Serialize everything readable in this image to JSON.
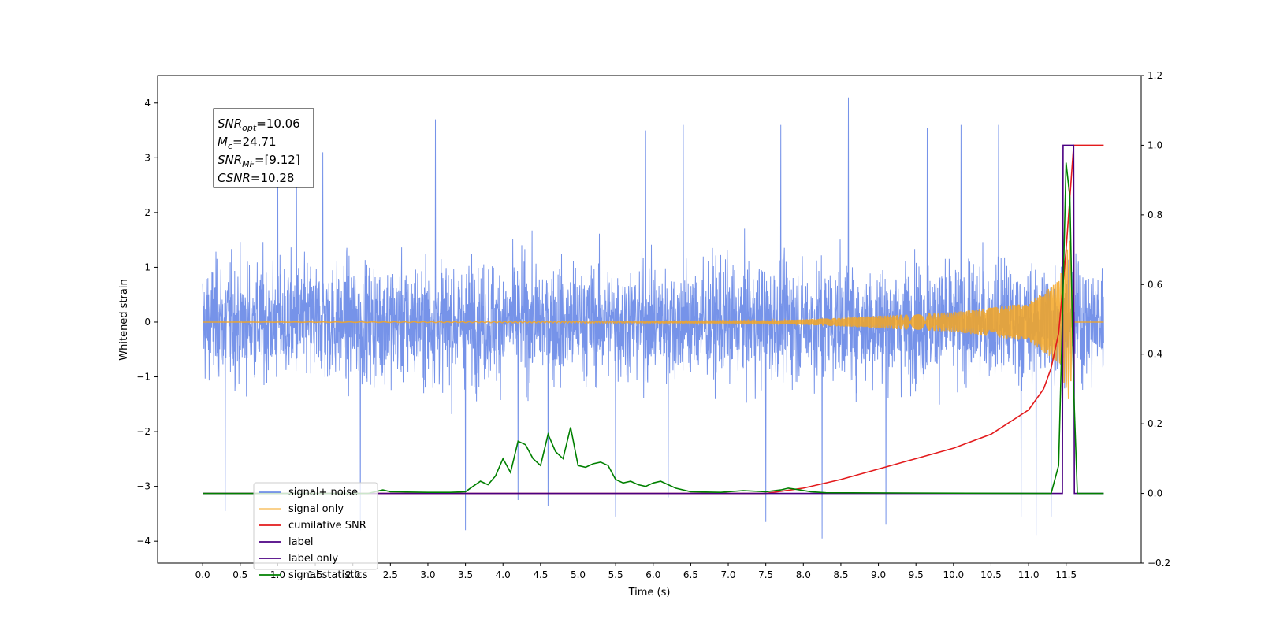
{
  "chart_data": {
    "type": "line",
    "title": "",
    "xlabel": "Time (s)",
    "ylabel": "Whitened strain",
    "xlim": [
      -0.6,
      12.5
    ],
    "ylim": [
      -4.4,
      4.5
    ],
    "y2lim": [
      -0.2,
      1.2
    ],
    "x_ticks": [
      0.0,
      0.5,
      1.0,
      1.5,
      2.0,
      2.5,
      3.0,
      3.5,
      4.0,
      4.5,
      5.0,
      5.5,
      6.0,
      6.5,
      7.0,
      7.5,
      8.0,
      8.5,
      9.0,
      9.5,
      10.0,
      10.5,
      11.0,
      11.5
    ],
    "x_tick_labels": [
      "0.0",
      "0.5",
      "1.0",
      "1.5",
      "2.0",
      "2.5",
      "3.0",
      "3.5",
      "4.0",
      "4.5",
      "5.0",
      "5.5",
      "6.0",
      "6.5",
      "7.0",
      "7.5",
      "8.0",
      "8.5",
      "9.0",
      "9.5",
      "10.0",
      "10.5",
      "11.0",
      "11.5"
    ],
    "y_ticks": [
      -4,
      -3,
      -2,
      -1,
      0,
      1,
      2,
      3,
      4
    ],
    "y_tick_labels": [
      "−4",
      "−3",
      "−2",
      "−1",
      "0",
      "1",
      "2",
      "3",
      "4"
    ],
    "y2_ticks": [
      -0.2,
      0.0,
      0.2,
      0.4,
      0.6,
      0.8,
      1.0,
      1.2
    ],
    "y2_tick_labels": [
      "−0.2",
      "0.0",
      "0.2",
      "0.4",
      "0.6",
      "0.8",
      "1.0",
      "1.2"
    ],
    "grid": false,
    "legend_position": "lower-left",
    "annotation": {
      "lines": [
        {
          "base": "SNR",
          "sub": "opt",
          "value": "=10.06"
        },
        {
          "base": "M",
          "sub": "c",
          "value": "=24.71"
        },
        {
          "base": "SNR",
          "sub": "MF",
          "value": "=[9.12]"
        },
        {
          "base": "CSNR",
          "sub": "",
          "value": "=10.28"
        }
      ]
    },
    "series": [
      {
        "name": "signal+ noise",
        "color": "#4169e1",
        "axis": "left",
        "kind": "noise",
        "x_range": [
          0.0,
          12.0
        ],
        "amplitude_envelope": [
          [
            0.0,
            2.4
          ],
          [
            12.0,
            2.4
          ]
        ],
        "spikes": [
          [
            0.3,
            -3.45
          ],
          [
            1.0,
            3.6
          ],
          [
            1.25,
            3.2
          ],
          [
            1.6,
            3.1
          ],
          [
            2.1,
            -3.8
          ],
          [
            3.1,
            3.7
          ],
          [
            3.5,
            3.8
          ],
          [
            3.5,
            -3.8
          ],
          [
            4.2,
            -3.25
          ],
          [
            4.6,
            -3.35
          ],
          [
            5.5,
            -3.55
          ],
          [
            5.9,
            3.5
          ],
          [
            6.2,
            -3.2
          ],
          [
            6.4,
            3.6
          ],
          [
            7.5,
            -3.65
          ],
          [
            7.7,
            3.6
          ],
          [
            8.25,
            -3.95
          ],
          [
            8.6,
            4.1
          ],
          [
            9.1,
            -3.7
          ],
          [
            9.65,
            3.55
          ],
          [
            10.1,
            3.6
          ],
          [
            10.6,
            3.6
          ],
          [
            10.9,
            -3.55
          ],
          [
            11.1,
            -3.9
          ],
          [
            11.3,
            -3.55
          ]
        ]
      },
      {
        "name": "signal only",
        "color": "#f5a623",
        "axis": "left",
        "kind": "chirp",
        "x_range": [
          0.0,
          12.0
        ],
        "amplitude_envelope": [
          [
            0.0,
            0.0
          ],
          [
            7.5,
            0.02
          ],
          [
            8.5,
            0.08
          ],
          [
            10.0,
            0.18
          ],
          [
            11.0,
            0.35
          ],
          [
            11.4,
            0.75
          ],
          [
            11.55,
            1.5
          ],
          [
            11.6,
            0.0
          ],
          [
            12.0,
            0.0
          ]
        ]
      },
      {
        "name": "cumilative SNR",
        "color": "#e31a1c",
        "axis": "right",
        "x": [
          0.0,
          7.5,
          8.0,
          8.5,
          9.0,
          9.5,
          10.0,
          10.5,
          11.0,
          11.2,
          11.3,
          11.4,
          11.5,
          11.55,
          11.6,
          11.7,
          12.0
        ],
        "y": [
          0.0,
          0.0,
          0.015,
          0.04,
          0.07,
          0.1,
          0.13,
          0.17,
          0.24,
          0.3,
          0.36,
          0.46,
          0.7,
          0.85,
          1.0,
          1.0,
          1.0
        ]
      },
      {
        "name": "label",
        "color": "#4b0082",
        "axis": "right",
        "x": [
          0.0,
          11.45,
          11.46,
          11.6,
          11.61,
          12.0
        ],
        "y": [
          0.0,
          0.0,
          1.0,
          1.0,
          0.0,
          0.0
        ]
      },
      {
        "name": "label only",
        "color": "#4b0082",
        "axis": "right",
        "legend_only": true
      },
      {
        "name": "signal statistics",
        "color": "#008000",
        "axis": "right",
        "x": [
          0.0,
          2.2,
          2.4,
          2.5,
          3.0,
          3.3,
          3.5,
          3.6,
          3.7,
          3.8,
          3.9,
          4.0,
          4.1,
          4.2,
          4.3,
          4.4,
          4.5,
          4.6,
          4.7,
          4.8,
          4.9,
          5.0,
          5.1,
          5.2,
          5.3,
          5.4,
          5.5,
          5.6,
          5.7,
          5.8,
          5.9,
          6.0,
          6.1,
          6.2,
          6.3,
          6.5,
          6.9,
          7.0,
          7.2,
          7.5,
          7.7,
          7.8,
          7.9,
          8.1,
          8.3,
          11.3,
          11.4,
          11.45,
          11.5,
          11.55,
          11.6,
          11.65,
          11.7,
          12.0
        ],
        "y": [
          0.0,
          0.0,
          0.01,
          0.005,
          0.003,
          0.003,
          0.005,
          0.02,
          0.035,
          0.025,
          0.05,
          0.1,
          0.06,
          0.15,
          0.14,
          0.1,
          0.08,
          0.17,
          0.12,
          0.1,
          0.19,
          0.08,
          0.075,
          0.085,
          0.09,
          0.08,
          0.04,
          0.03,
          0.035,
          0.025,
          0.02,
          0.03,
          0.035,
          0.025,
          0.015,
          0.005,
          0.003,
          0.005,
          0.008,
          0.005,
          0.01,
          0.015,
          0.012,
          0.005,
          0.002,
          0.0,
          0.08,
          0.5,
          0.95,
          0.85,
          0.3,
          0.0,
          0.0,
          0.0
        ]
      }
    ]
  }
}
